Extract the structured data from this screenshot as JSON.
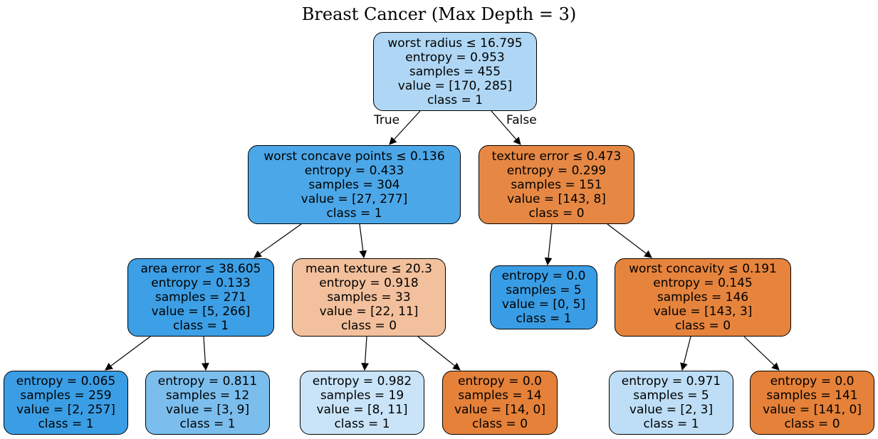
{
  "title": "Breast Cancer (Max Depth = 3)",
  "edge_labels": {
    "true_label": "True",
    "false_label": "False"
  },
  "colors": {
    "class_0_orange": "#e58139",
    "class_1_blue": "#399de5"
  },
  "nodes": {
    "root": {
      "split": "worst radius ≤ 16.795",
      "entropy": "entropy = 0.953",
      "samples": "samples = 455",
      "value": "value = [170, 285]",
      "class": "class = 1",
      "fill": "#afd7f5"
    },
    "n1": {
      "split": "worst concave points ≤ 0.136",
      "entropy": "entropy = 0.433",
      "samples": "samples = 304",
      "value": "value = [27, 277]",
      "class": "class = 1",
      "fill": "#4ca7e8"
    },
    "n2": {
      "split": "texture error ≤ 0.473",
      "entropy": "entropy = 0.299",
      "samples": "samples = 151",
      "value": "value = [143, 8]",
      "class": "class = 0",
      "fill": "#e68844"
    },
    "n3": {
      "split": "area error ≤ 38.605",
      "entropy": "entropy = 0.133",
      "samples": "samples = 271",
      "value": "value = [5, 266]",
      "class": "class = 1",
      "fill": "#3d9fe5"
    },
    "n4": {
      "split": "mean texture ≤ 20.3",
      "entropy": "entropy = 0.918",
      "samples": "samples = 33",
      "value": "value = [22, 11]",
      "class": "class = 0",
      "fill": "#f2c09c"
    },
    "n5": {
      "entropy": "entropy = 0.0",
      "samples": "samples = 5",
      "value": "value = [0, 5]",
      "class": "class = 1",
      "fill": "#399de5"
    },
    "n6": {
      "split": "worst concavity ≤ 0.191",
      "entropy": "entropy = 0.145",
      "samples": "samples = 146",
      "value": "value = [143, 3]",
      "class": "class = 0",
      "fill": "#e6843d"
    },
    "n7": {
      "entropy": "entropy = 0.065",
      "samples": "samples = 259",
      "value": "value = [2, 257]",
      "class": "class = 1",
      "fill": "#3b9ee5"
    },
    "n8": {
      "entropy": "entropy = 0.811",
      "samples": "samples = 12",
      "value": "value = [3, 9]",
      "class": "class = 1",
      "fill": "#7bbeee"
    },
    "n9": {
      "entropy": "entropy = 0.982",
      "samples": "samples = 19",
      "value": "value = [8, 11]",
      "class": "class = 1",
      "fill": "#c9e4f8"
    },
    "n10": {
      "entropy": "entropy = 0.0",
      "samples": "samples = 14",
      "value": "value = [14, 0]",
      "class": "class = 0",
      "fill": "#e58139"
    },
    "n11": {
      "entropy": "entropy = 0.971",
      "samples": "samples = 5",
      "value": "value = [2, 3]",
      "class": "class = 1",
      "fill": "#bddef6"
    },
    "n12": {
      "entropy": "entropy = 0.0",
      "samples": "samples = 141",
      "value": "value = [141, 0]",
      "class": "class = 0",
      "fill": "#e58139"
    }
  }
}
